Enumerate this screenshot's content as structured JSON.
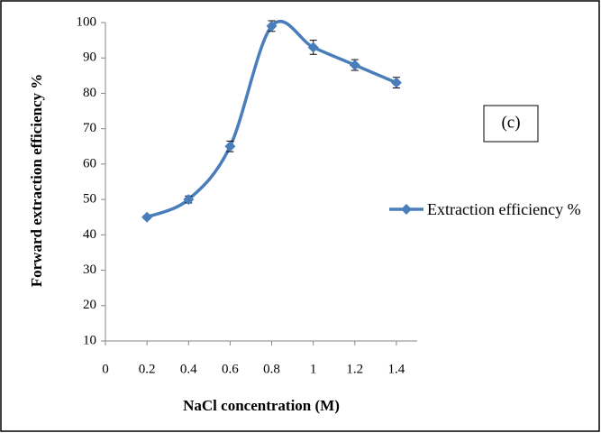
{
  "chart_data": {
    "type": "line",
    "x_label": "NaCl concentration (M)",
    "y_label": "Forward extraction efficiency %",
    "annotation": "(c)",
    "x": [
      0.2,
      0.4,
      0.6,
      0.8,
      1,
      1.2,
      1.4
    ],
    "series": [
      {
        "name": "Extraction efficiency %",
        "color": "#4a7ebb",
        "values": [
          45,
          50,
          65,
          99,
          93,
          88,
          83
        ],
        "errors": [
          0.5,
          1,
          1.5,
          1.5,
          2,
          1.5,
          1.5
        ]
      }
    ],
    "xlim": [
      0,
      1.5
    ],
    "xticks": [
      0,
      0.2,
      0.4,
      0.6,
      0.8,
      1,
      1.2,
      1.4
    ],
    "ylim": [
      10,
      100
    ],
    "yticks": [
      10,
      20,
      30,
      40,
      50,
      60,
      70,
      80,
      90,
      100
    ],
    "smooth": true,
    "grid": false,
    "legend": "right"
  }
}
